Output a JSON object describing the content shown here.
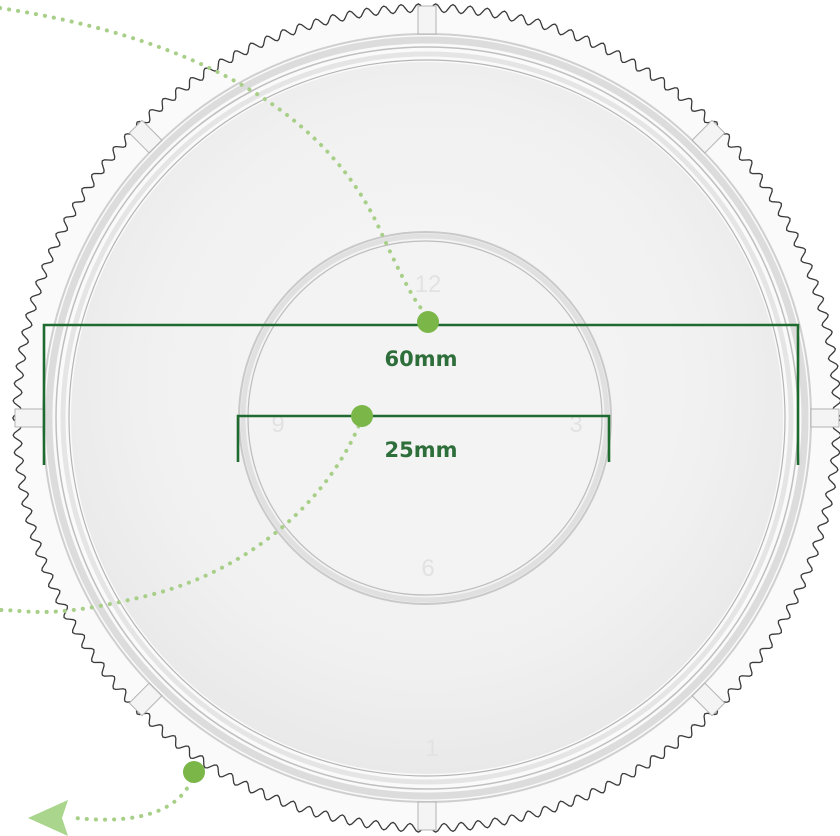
{
  "image": {
    "subject": "clear-plastic-ring-dish",
    "colors": {
      "dimension_line": "#1f6b2f",
      "dimension_text": "#2e6e3a",
      "dot": "#7ab648",
      "dotted_path": "#a8cf88",
      "arrow": "#a9d58c",
      "plastic_edge": "#b9b9b9",
      "mold_numbers": "#e2e2e2"
    }
  },
  "dimensions": {
    "outer": {
      "label": "60mm"
    },
    "inner": {
      "label": "25mm"
    }
  },
  "mold_markings": {
    "top": "12",
    "right": "3",
    "bottom": "6",
    "left": "9",
    "rim": "1"
  }
}
